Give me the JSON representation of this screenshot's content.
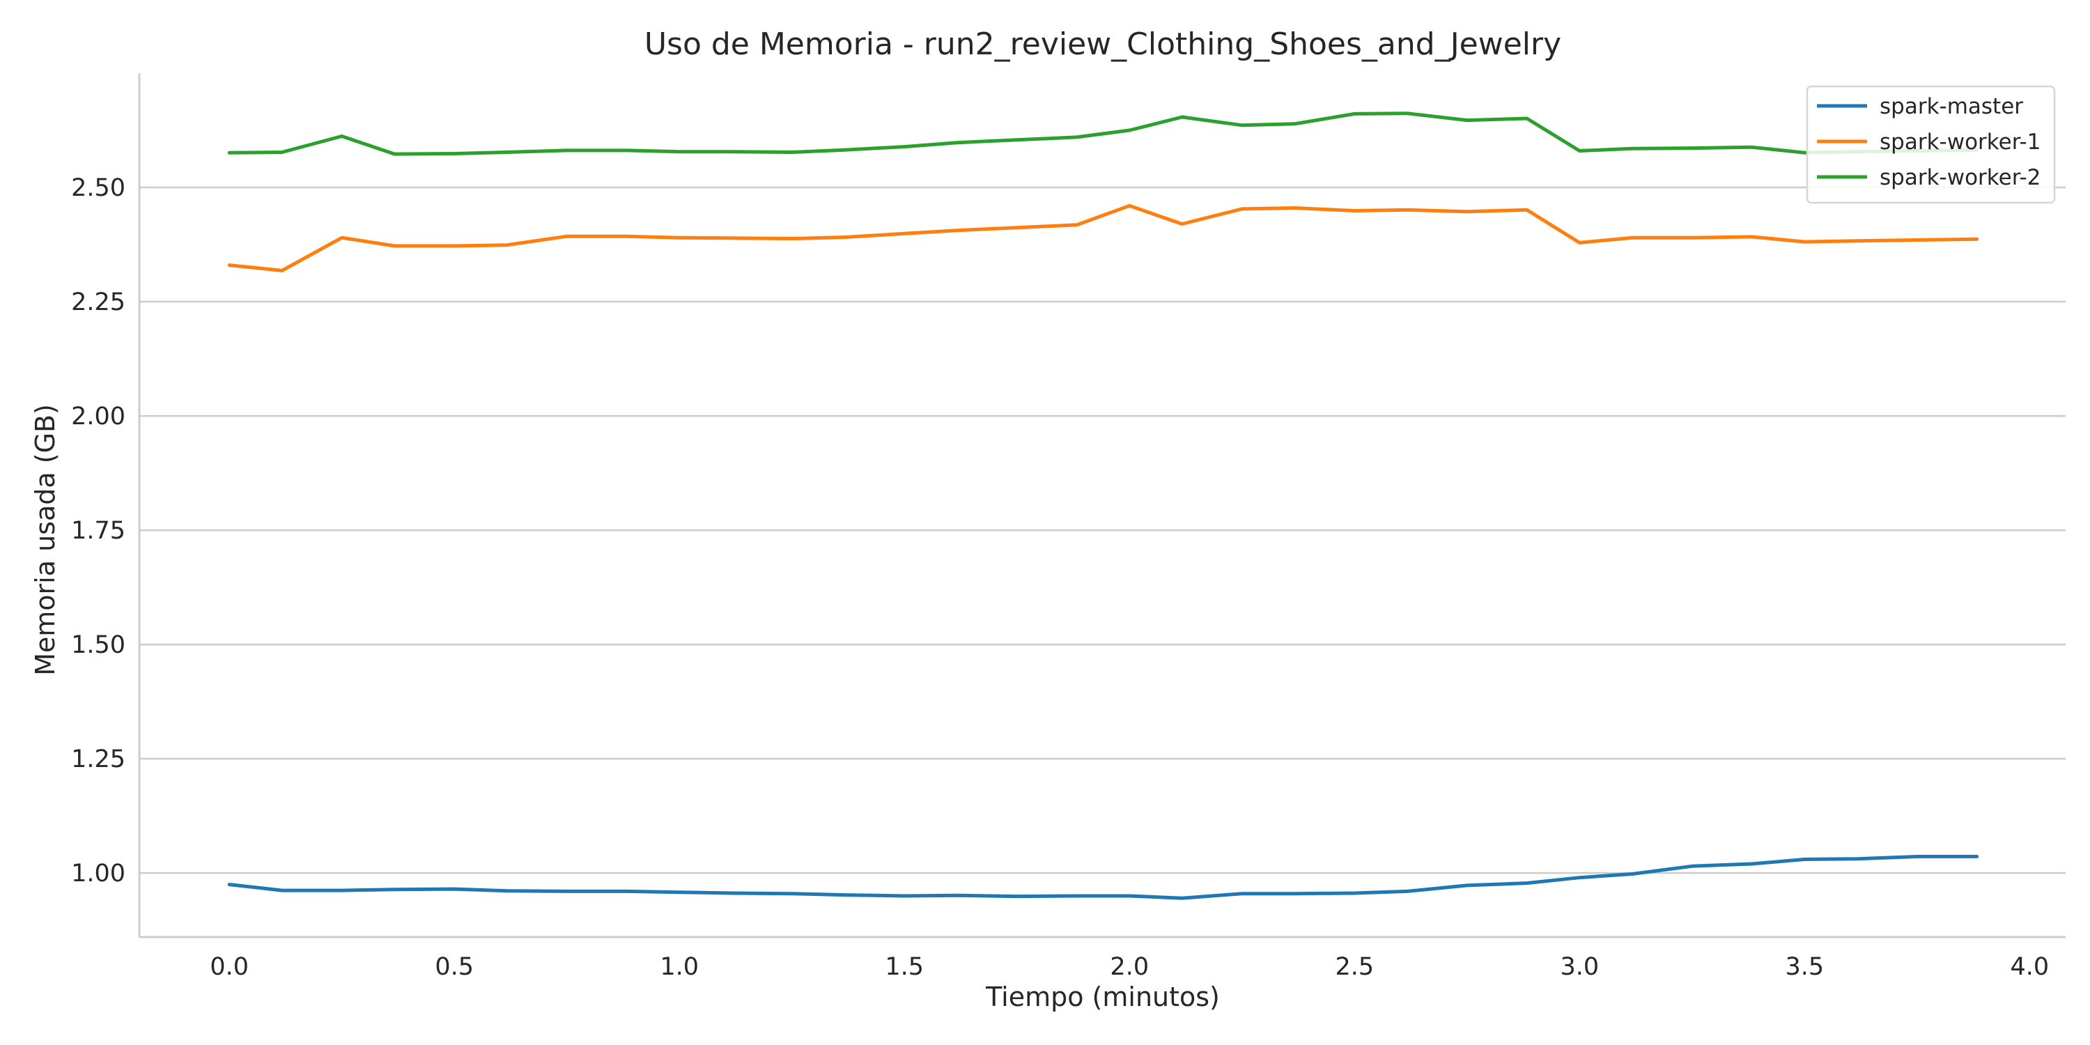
{
  "chart_data": {
    "type": "line",
    "title": "Uso de Memoria - run2_review_Clothing_Shoes_and_Jewelry",
    "xlabel": "Tiempo (minutos)",
    "ylabel": "Memoria usada (GB)",
    "xlim": [
      -0.2,
      4.08
    ],
    "ylim": [
      0.86,
      2.75
    ],
    "x_ticks": [
      0.0,
      0.5,
      1.0,
      1.5,
      2.0,
      2.5,
      3.0,
      3.5,
      4.0
    ],
    "x_tick_labels": [
      "0.0",
      "0.5",
      "1.0",
      "1.5",
      "2.0",
      "2.5",
      "3.0",
      "3.5",
      "4.0"
    ],
    "y_ticks": [
      1.0,
      1.25,
      1.5,
      1.75,
      2.0,
      2.25,
      2.5
    ],
    "y_tick_labels": [
      "1.00",
      "1.25",
      "1.50",
      "1.75",
      "2.00",
      "2.25",
      "2.50"
    ],
    "grid": "horizontal",
    "legend_position": "top-right",
    "x": [
      0.0,
      0.117,
      0.25,
      0.367,
      0.5,
      0.617,
      0.75,
      0.883,
      1.0,
      1.117,
      1.25,
      1.367,
      1.5,
      1.617,
      1.75,
      1.883,
      2.0,
      2.117,
      2.25,
      2.367,
      2.5,
      2.617,
      2.75,
      2.883,
      3.0,
      3.117,
      3.25,
      3.383,
      3.5,
      3.617,
      3.75,
      3.883
    ],
    "series": [
      {
        "name": "spark-master",
        "color": "#1f77b4",
        "values": [
          0.975,
          0.962,
          0.962,
          0.964,
          0.965,
          0.961,
          0.96,
          0.96,
          0.958,
          0.956,
          0.955,
          0.952,
          0.95,
          0.951,
          0.949,
          0.95,
          0.95,
          0.945,
          0.955,
          0.955,
          0.956,
          0.96,
          0.973,
          0.978,
          0.99,
          0.998,
          1.015,
          1.02,
          1.03,
          1.031,
          1.036,
          1.036
        ]
      },
      {
        "name": "spark-worker-1",
        "color": "#ff7f0e",
        "values": [
          2.33,
          2.318,
          2.39,
          2.372,
          2.372,
          2.374,
          2.393,
          2.393,
          2.39,
          2.389,
          2.388,
          2.391,
          2.399,
          2.406,
          2.412,
          2.418,
          2.46,
          2.42,
          2.453,
          2.455,
          2.449,
          2.451,
          2.447,
          2.451,
          2.379,
          2.39,
          2.39,
          2.392,
          2.381,
          2.383,
          2.385,
          2.387
        ]
      },
      {
        "name": "spark-worker-2",
        "color": "#2ca02c",
        "values": [
          2.576,
          2.577,
          2.612,
          2.573,
          2.574,
          2.577,
          2.581,
          2.581,
          2.578,
          2.578,
          2.577,
          2.582,
          2.589,
          2.598,
          2.604,
          2.61,
          2.625,
          2.654,
          2.636,
          2.639,
          2.661,
          2.662,
          2.647,
          2.651,
          2.58,
          2.585,
          2.586,
          2.588,
          2.576,
          2.578,
          2.58,
          2.582
        ]
      }
    ]
  }
}
